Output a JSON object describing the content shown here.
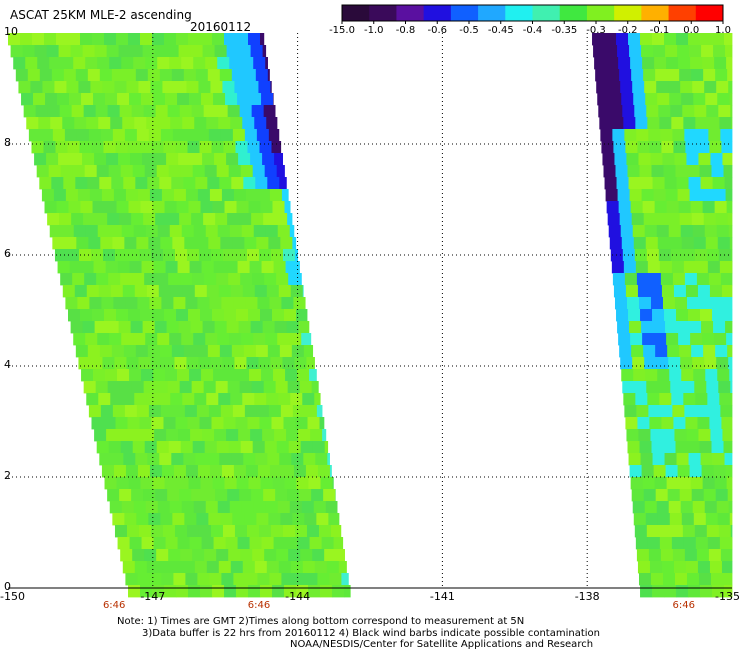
{
  "header": {
    "title": "ASCAT 25KM MLE-2 ascending",
    "date": "20160112"
  },
  "colorbar": {
    "labels": [
      "-15.0",
      "-1.0",
      "-0.8",
      "-0.6",
      "-0.5",
      "-0.45",
      "-0.4",
      "-0.35",
      "-0.3",
      "-0.2",
      "-0.1",
      "0.0",
      "1.0"
    ],
    "colors": [
      "#2a0a3a",
      "#3a0a5a",
      "#5a10a0",
      "#2010e0",
      "#1060ff",
      "#20a8ff",
      "#20f0f0",
      "#40f0b0",
      "#40e840",
      "#80f020",
      "#d0f000",
      "#ffb000",
      "#ff4000",
      "#ff0000"
    ]
  },
  "chart_data": {
    "type": "heatmap",
    "title": "ASCAT 25KM MLE-2 ascending",
    "date": "20160112",
    "x_ticks": [
      "-150",
      "-147",
      "-144",
      "-141",
      "-138",
      "-135"
    ],
    "y_ticks": [
      "0",
      "2",
      "4",
      "6",
      "8",
      "10"
    ],
    "xlim": [
      -150,
      -135
    ],
    "ylim": [
      0,
      10
    ],
    "grid": true,
    "time_labels": [
      {
        "lon": -147.8,
        "text": "6:46"
      },
      {
        "lon": -144.8,
        "text": "6:46"
      },
      {
        "lon": -136.0,
        "text": "6:46"
      }
    ],
    "swaths": [
      {
        "name": "west",
        "lon_left_top": -150.0,
        "lon_left_bottom": -147.5,
        "lon_right_top": -144.7,
        "lon_right_bottom": -142.9
      },
      {
        "name": "east",
        "lon_left_top": -137.9,
        "lon_left_bottom": -136.9,
        "lon_right_top": -135.0,
        "lon_right_bottom": -135.0
      }
    ]
  },
  "notes": {
    "line1": "Note: 1) Times are GMT 2)Times along bottom correspond to measurement at 5N",
    "line2": "3)Data buffer is 22 hrs from 20160112 4) Black wind barbs indicate possible contamination",
    "line3": "NOAA/NESDIS/Center for Satellite Applications and Research"
  }
}
